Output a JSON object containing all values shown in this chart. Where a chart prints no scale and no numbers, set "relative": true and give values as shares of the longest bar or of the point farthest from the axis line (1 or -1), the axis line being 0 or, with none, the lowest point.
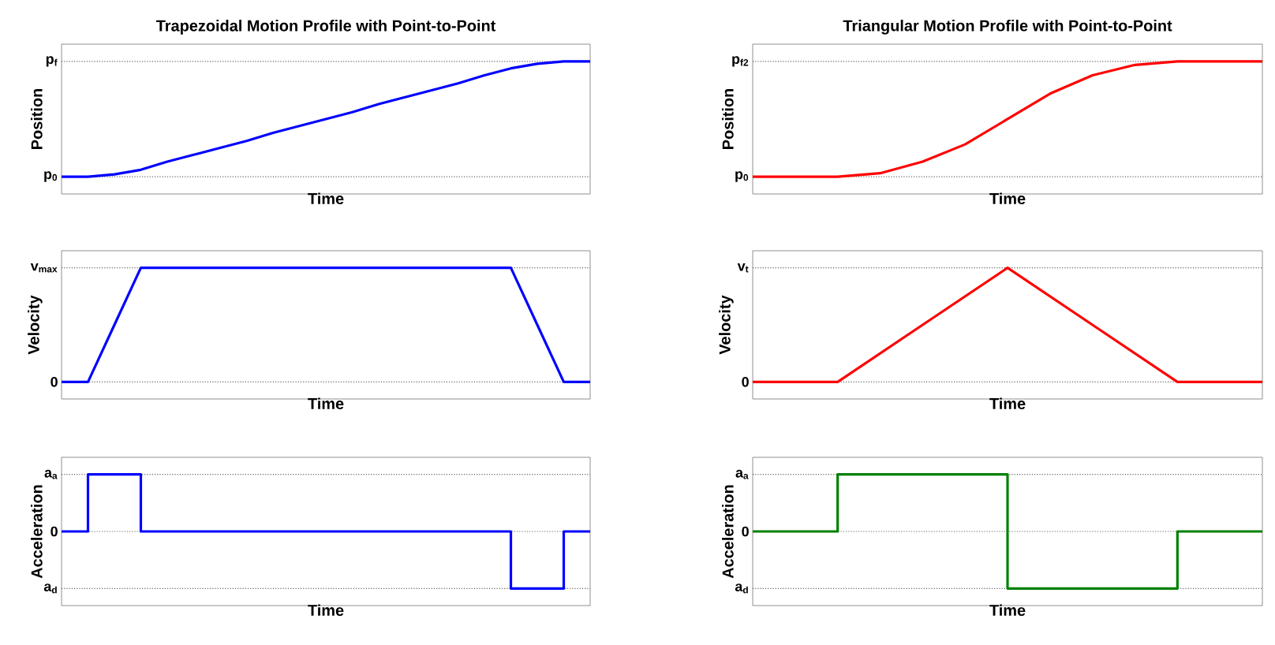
{
  "chart_data": [
    {
      "type": "line",
      "relative": true,
      "title": "Trapezoidal Motion Profile with Point-to-Point",
      "xlabel": "Time",
      "ylabel": "Position",
      "ref_lines": [
        {
          "axis": "y",
          "value": 0,
          "label": "p$_{0}$",
          "line_style": "dotted"
        },
        {
          "axis": "y",
          "value": 1,
          "label": "p$_{f}$",
          "line_style": "dotted"
        }
      ],
      "categories": [
        null,
        null,
        null,
        null,
        null,
        null,
        null,
        null,
        null,
        null,
        null,
        null,
        null,
        null,
        null,
        null,
        null,
        null,
        null,
        null,
        null
      ],
      "series": [
        {
          "color": "#0000ff",
          "values": [
            0,
            0,
            0.02,
            0.06,
            0.13,
            0.19,
            0.25,
            0.31,
            0.38,
            0.44,
            0.5,
            0.56,
            0.63,
            0.69,
            0.75,
            0.81,
            0.88,
            0.94,
            0.98,
            1,
            1
          ]
        }
      ]
    },
    {
      "type": "line",
      "relative": true,
      "title": "Triangular Motion Profile with Point-to-Point",
      "xlabel": "Time",
      "ylabel": "Position",
      "ref_lines": [
        {
          "axis": "y",
          "value": 0,
          "label": "p$_{0}$",
          "line_style": "dotted"
        },
        {
          "axis": "y",
          "value": 1,
          "label": "p$_{f2}$",
          "line_style": "dotted"
        }
      ],
      "categories": [
        null,
        null,
        null,
        null,
        null,
        null,
        null,
        null,
        null,
        null,
        null,
        null,
        null
      ],
      "series": [
        {
          "color": "#ff0000",
          "values": [
            0,
            0,
            0,
            0.03,
            0.13,
            0.28,
            0.5,
            0.72,
            0.88,
            0.97,
            1,
            1,
            1
          ]
        }
      ]
    },
    {
      "type": "line",
      "relative": true,
      "xlabel": "Time",
      "ylabel": "Velocity",
      "ref_lines": [
        {
          "axis": "y",
          "value": 0,
          "label": "0",
          "line_style": "dotted"
        },
        {
          "axis": "y",
          "value": 1,
          "label": "v$_{max}$",
          "line_style": "dotted"
        }
      ],
      "categories": [
        null,
        null,
        null,
        null,
        null,
        null,
        null,
        null,
        null,
        null,
        null,
        null,
        null,
        null,
        null,
        null,
        null,
        null,
        null,
        null,
        null
      ],
      "series": [
        {
          "color": "#0000ff",
          "values": [
            0,
            0,
            0.5,
            1,
            1,
            1,
            1,
            1,
            1,
            1,
            1,
            1,
            1,
            1,
            1,
            1,
            1,
            1,
            0.5,
            0,
            0
          ]
        }
      ]
    },
    {
      "type": "line",
      "relative": true,
      "xlabel": "Time",
      "ylabel": "Velocity",
      "ref_lines": [
        {
          "axis": "y",
          "value": 0,
          "label": "0",
          "line_style": "dotted"
        },
        {
          "axis": "y",
          "value": 1,
          "label": "v$_{t}$",
          "line_style": "dotted"
        }
      ],
      "categories": [
        null,
        null,
        null,
        null,
        null,
        null,
        null
      ],
      "series": [
        {
          "color": "#ff0000",
          "values": [
            0,
            0,
            0.5,
            1,
            0.5,
            0,
            0
          ]
        }
      ]
    },
    {
      "type": "step",
      "relative": true,
      "xlabel": "Time",
      "ylabel": "Acceleration",
      "ref_lines": [
        {
          "axis": "y",
          "value": 1,
          "label": "a$_{a}$",
          "line_style": "dotted"
        },
        {
          "axis": "y",
          "value": 0,
          "label": "0",
          "line_style": "dotted"
        },
        {
          "axis": "y",
          "value": -1,
          "label": "a$_{d}$",
          "line_style": "dotted"
        }
      ],
      "categories": [
        null,
        null,
        null,
        null,
        null,
        null,
        null,
        null,
        null,
        null,
        null,
        null,
        null,
        null,
        null,
        null,
        null,
        null,
        null,
        null,
        null
      ],
      "series": [
        {
          "color": "#0000ff",
          "values": [
            0,
            1,
            1,
            0,
            0,
            0,
            0,
            0,
            0,
            0,
            0,
            0,
            0,
            0,
            0,
            0,
            0,
            -1,
            -1,
            0,
            0
          ]
        }
      ]
    },
    {
      "type": "step",
      "relative": true,
      "xlabel": "Time",
      "ylabel": "Acceleration",
      "ref_lines": [
        {
          "axis": "y",
          "value": 1,
          "label": "a$_{a}$",
          "line_style": "dotted"
        },
        {
          "axis": "y",
          "value": 0,
          "label": "0",
          "line_style": "dotted"
        },
        {
          "axis": "y",
          "value": -1,
          "label": "a$_{d}$",
          "line_style": "dotted"
        }
      ],
      "categories": [
        null,
        null,
        null,
        null,
        null,
        null,
        null
      ],
      "series": [
        {
          "color": "#008000",
          "values": [
            0,
            1,
            1,
            -1,
            -1,
            0,
            0
          ]
        }
      ]
    }
  ]
}
